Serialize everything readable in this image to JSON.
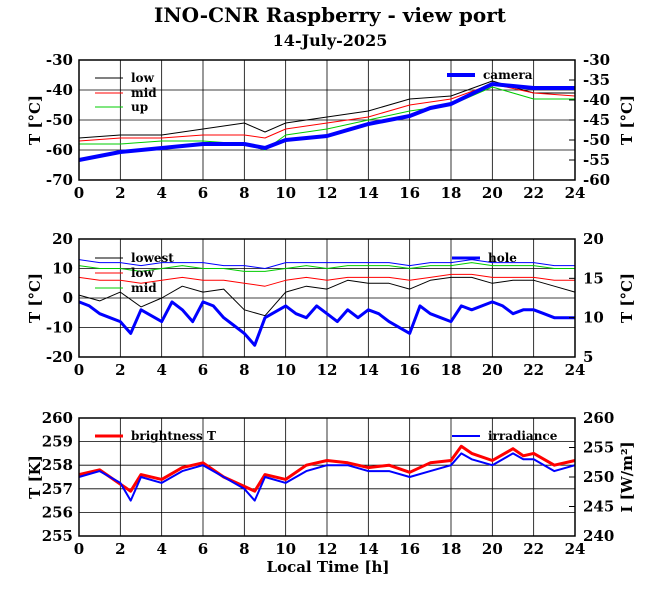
{
  "title": "INO-CNR Raspberry - view port",
  "subtitle": "14-July-2025",
  "xlabel": "Local Time [h]",
  "colors": {
    "black": "#000000",
    "red": "#ff0000",
    "green": "#00cc00",
    "blue": "#0000ff"
  },
  "chart_data": [
    {
      "type": "line",
      "x_ticks": [
        0,
        2,
        4,
        6,
        8,
        10,
        12,
        14,
        16,
        18,
        20,
        22,
        24
      ],
      "xlim": [
        0,
        24
      ],
      "ylabel_left": "T [°C]",
      "ylabel_right": "T [°C]",
      "ylim_left": [
        -70,
        -30
      ],
      "yticks_left": [
        -70,
        -60,
        -50,
        -40,
        -30
      ],
      "ylim_right": [
        -60,
        -30
      ],
      "yticks_right": [
        -60,
        -55,
        -50,
        -45,
        -40,
        -35,
        -30
      ],
      "grid": true,
      "legend_position": "top-left",
      "series": [
        {
          "name": "low",
          "axis": "left",
          "color": "#000000",
          "x": [
            0,
            2,
            4,
            6,
            8,
            9,
            10,
            12,
            14,
            16,
            18,
            20,
            22,
            24
          ],
          "y": [
            -56,
            -55,
            -55,
            -53,
            -51,
            -54,
            -51,
            -49,
            -47,
            -43,
            -42,
            -37,
            -41,
            -41
          ]
        },
        {
          "name": "mid",
          "axis": "left",
          "color": "#ff0000",
          "x": [
            0,
            2,
            4,
            6,
            8,
            9,
            10,
            12,
            14,
            16,
            18,
            20,
            22,
            24
          ],
          "y": [
            -57,
            -56,
            -56,
            -55,
            -55,
            -56,
            -53,
            -51,
            -49,
            -45,
            -43,
            -38,
            -41,
            -42
          ]
        },
        {
          "name": "up",
          "axis": "left",
          "color": "#00cc00",
          "x": [
            0,
            2,
            4,
            6,
            8,
            9,
            10,
            12,
            14,
            16,
            18,
            20,
            22,
            24
          ],
          "y": [
            -58,
            -58,
            -57,
            -57,
            -58,
            -60,
            -55,
            -53,
            -50,
            -47,
            -45,
            -39,
            -43,
            -43
          ]
        },
        {
          "name": "camera",
          "axis": "right",
          "color": "#0000ff",
          "x": [
            0,
            2,
            4,
            6,
            8,
            9,
            10,
            12,
            14,
            16,
            17,
            18,
            20,
            22,
            24
          ],
          "y": [
            -55,
            -53,
            -52,
            -51,
            -51,
            -52,
            -50,
            -49,
            -46,
            -44,
            -42,
            -41,
            -36,
            -37,
            -37
          ]
        }
      ]
    },
    {
      "type": "line",
      "x_ticks": [
        0,
        2,
        4,
        6,
        8,
        10,
        12,
        14,
        16,
        18,
        20,
        22,
        24
      ],
      "xlim": [
        0,
        24
      ],
      "ylabel_left": "T [°C]",
      "ylabel_right": "T [°C]",
      "ylim_left": [
        -20,
        20
      ],
      "yticks_left": [
        -20,
        -10,
        0,
        10,
        20
      ],
      "ylim_right": [
        5,
        20
      ],
      "yticks_right": [
        5,
        10,
        15,
        20
      ],
      "grid": true,
      "legend_position": "top",
      "series": [
        {
          "name": "lowest",
          "axis": "left",
          "color": "#000000",
          "x": [
            0,
            1,
            2,
            3,
            4,
            5,
            6,
            7,
            8,
            9,
            10,
            11,
            12,
            13,
            14,
            15,
            16,
            17,
            18,
            19,
            20,
            21,
            22,
            23,
            24
          ],
          "y": [
            1,
            -1,
            2,
            -3,
            0,
            4,
            2,
            3,
            -4,
            -6,
            2,
            4,
            3,
            6,
            5,
            5,
            3,
            6,
            7,
            7,
            5,
            6,
            6,
            4,
            2
          ]
        },
        {
          "name": "low",
          "axis": "left",
          "color": "#ff0000",
          "x": [
            0,
            1,
            2,
            3,
            4,
            5,
            6,
            7,
            8,
            9,
            10,
            11,
            12,
            13,
            14,
            15,
            16,
            17,
            18,
            19,
            20,
            21,
            22,
            23,
            24
          ],
          "y": [
            7,
            6,
            6,
            5,
            6,
            7,
            6,
            6,
            5,
            4,
            6,
            7,
            6,
            7,
            7,
            7,
            6,
            7,
            8,
            8,
            7,
            7,
            7,
            6,
            6
          ]
        },
        {
          "name": "mid",
          "axis": "left",
          "color": "#00cc00",
          "x": [
            0,
            1,
            2,
            3,
            4,
            5,
            6,
            7,
            8,
            9,
            10,
            11,
            12,
            13,
            14,
            15,
            16,
            17,
            18,
            19,
            20,
            21,
            22,
            23,
            24
          ],
          "y": [
            11,
            10,
            10,
            9,
            10,
            11,
            10,
            10,
            9,
            9,
            10,
            11,
            10,
            11,
            11,
            11,
            10,
            11,
            11,
            12,
            11,
            11,
            11,
            10,
            10
          ]
        },
        {
          "name": "",
          "axis": "left",
          "color": "#0000ff",
          "x": [
            0,
            1,
            2,
            3,
            4,
            5,
            6,
            7,
            8,
            9,
            10,
            11,
            12,
            13,
            14,
            15,
            16,
            17,
            18,
            19,
            20,
            21,
            22,
            23,
            24
          ],
          "y": [
            13,
            12,
            12,
            11,
            12,
            12,
            12,
            11,
            11,
            10,
            12,
            12,
            12,
            12,
            12,
            12,
            11,
            12,
            12,
            13,
            12,
            12,
            12,
            11,
            11
          ]
        },
        {
          "name": "hole",
          "axis": "right",
          "color": "#0000ff",
          "x": [
            0,
            0.5,
            1,
            1.5,
            2,
            2.5,
            3,
            4,
            4.5,
            5,
            5.5,
            6,
            6.5,
            7,
            7.5,
            8,
            8.5,
            9,
            10,
            10.5,
            11,
            11.5,
            12,
            12.5,
            13,
            13.5,
            14,
            14.5,
            15,
            16,
            16.5,
            17,
            17.5,
            18,
            18.5,
            19,
            20,
            20.5,
            21,
            21.5,
            22,
            22.5,
            23,
            23.5,
            24
          ],
          "y": [
            12,
            11.5,
            10.5,
            10,
            9.5,
            8,
            11,
            9.5,
            12,
            11,
            9.5,
            12,
            11.5,
            10,
            9,
            8,
            6.5,
            10,
            11.5,
            10.5,
            10,
            11.5,
            10.5,
            9.5,
            11,
            10,
            11,
            10.5,
            9.5,
            8,
            11.5,
            10.5,
            10,
            9.5,
            11.5,
            11,
            12,
            11.5,
            10.5,
            11,
            11,
            10.5,
            10,
            10,
            10
          ]
        }
      ]
    },
    {
      "type": "line",
      "x_ticks": [
        0,
        2,
        4,
        6,
        8,
        10,
        12,
        14,
        16,
        18,
        20,
        22,
        24
      ],
      "xlim": [
        0,
        24
      ],
      "ylabel_left": "T [K]",
      "ylabel_right": "I [W/m²]",
      "ylim_left": [
        255,
        260
      ],
      "yticks_left": [
        255,
        256,
        257,
        258,
        259,
        260
      ],
      "ylim_right": [
        240,
        260
      ],
      "yticks_right": [
        240,
        245,
        250,
        255,
        260
      ],
      "grid": true,
      "legend_position": "top",
      "series": [
        {
          "name": "brightness T",
          "axis": "left",
          "color": "#ff0000",
          "x": [
            0,
            1,
            2,
            2.5,
            3,
            4,
            5,
            6,
            7,
            8,
            8.5,
            9,
            10,
            11,
            12,
            13,
            14,
            15,
            16,
            17,
            18,
            18.5,
            19,
            20,
            21,
            21.5,
            22,
            23,
            24
          ],
          "y": [
            257.6,
            257.8,
            257.2,
            256.9,
            257.6,
            257.4,
            257.9,
            258.1,
            257.5,
            257.1,
            256.9,
            257.6,
            257.4,
            258.0,
            258.2,
            258.1,
            257.9,
            258.0,
            257.7,
            258.1,
            258.2,
            258.8,
            258.5,
            258.2,
            258.7,
            258.4,
            258.5,
            258.0,
            258.2
          ]
        },
        {
          "name": "irradiance",
          "axis": "right",
          "color": "#0000ff",
          "x": [
            0,
            1,
            2,
            2.5,
            3,
            4,
            5,
            6,
            7,
            8,
            8.5,
            9,
            10,
            11,
            12,
            13,
            14,
            15,
            16,
            17,
            18,
            18.5,
            19,
            20,
            21,
            21.5,
            22,
            23,
            24
          ],
          "y": [
            250,
            251,
            249,
            246,
            250,
            249,
            251,
            252,
            250,
            248,
            246,
            250,
            249,
            251,
            252,
            252,
            251,
            251,
            250,
            251,
            252,
            254,
            253,
            252,
            254,
            253,
            253,
            251,
            252
          ]
        }
      ]
    }
  ]
}
